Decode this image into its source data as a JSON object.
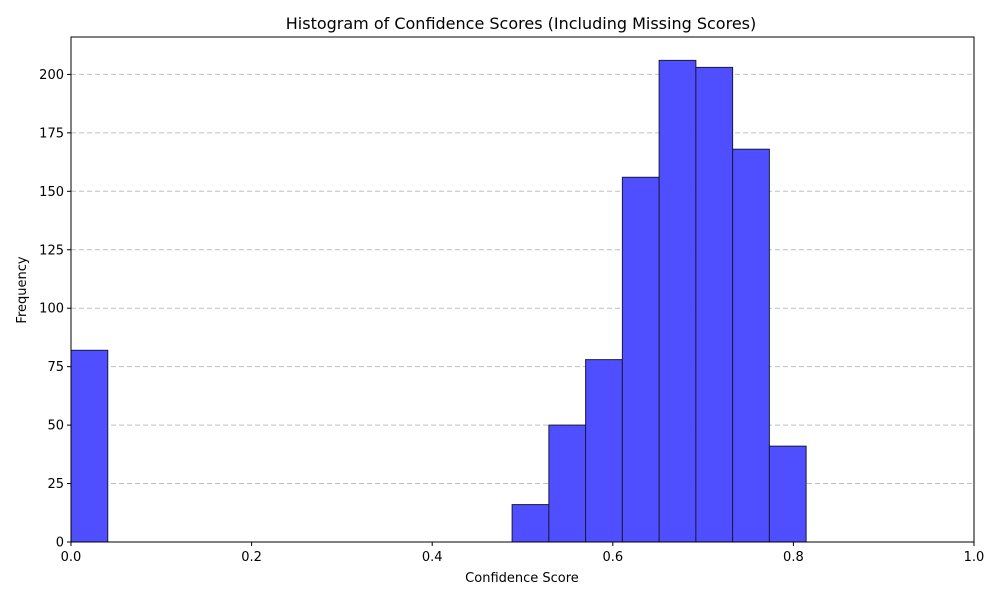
{
  "chart_data": {
    "type": "bar",
    "title": "Histogram of Confidence Scores (Including Missing Scores)",
    "xlabel": "Confidence Score",
    "ylabel": "Frequency",
    "xlim": [
      0.0,
      1.0
    ],
    "ylim": [
      0,
      216
    ],
    "x_ticks": [
      "0.0",
      "0.2",
      "0.4",
      "0.6",
      "0.8",
      "1.0"
    ],
    "x_tick_values": [
      0.0,
      0.2,
      0.4,
      0.6,
      0.8,
      1.0
    ],
    "y_ticks": [
      "0",
      "25",
      "50",
      "75",
      "100",
      "125",
      "150",
      "175",
      "200"
    ],
    "y_tick_values": [
      0,
      25,
      50,
      75,
      100,
      125,
      150,
      175,
      200
    ],
    "grid": "y-dashed",
    "bar_color": "#4b4bff",
    "edge_color": "#1a1a40",
    "bins": [
      {
        "x0": 0.0,
        "x1": 0.0407,
        "value": 82
      },
      {
        "x0": 0.4885,
        "x1": 0.5292,
        "value": 16
      },
      {
        "x0": 0.5292,
        "x1": 0.5699,
        "value": 50
      },
      {
        "x0": 0.5699,
        "x1": 0.6106,
        "value": 78
      },
      {
        "x0": 0.6106,
        "x1": 0.6513,
        "value": 156
      },
      {
        "x0": 0.6513,
        "x1": 0.692,
        "value": 206
      },
      {
        "x0": 0.692,
        "x1": 0.7327,
        "value": 203
      },
      {
        "x0": 0.7327,
        "x1": 0.7734,
        "value": 168
      },
      {
        "x0": 0.7734,
        "x1": 0.8141,
        "value": 41
      }
    ]
  }
}
